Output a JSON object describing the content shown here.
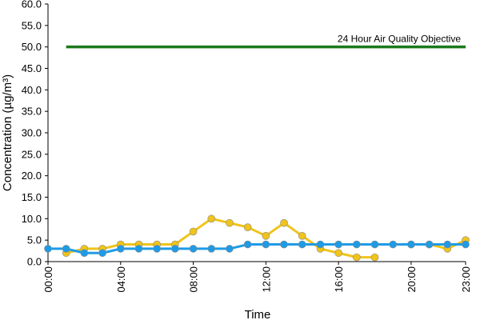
{
  "chart_data": {
    "type": "line",
    "title": "",
    "xlabel": "Time",
    "ylabel": "Concentration (µg/m³)",
    "ylim": [
      0,
      60
    ],
    "yticks": [
      "0.0",
      "5.0",
      "10.0",
      "15.0",
      "20.0",
      "25.0",
      "30.0",
      "35.0",
      "40.0",
      "45.0",
      "50.0",
      "55.0",
      "60.0"
    ],
    "x": [
      0,
      1,
      2,
      3,
      4,
      5,
      6,
      7,
      8,
      9,
      10,
      11,
      12,
      13,
      14,
      15,
      16,
      17,
      18,
      19,
      20,
      21,
      22,
      23
    ],
    "xticks": [
      {
        "x": 0,
        "label": "00:00"
      },
      {
        "x": 4,
        "label": "04:00"
      },
      {
        "x": 8,
        "label": "08:00"
      },
      {
        "x": 12,
        "label": "12:00"
      },
      {
        "x": 16,
        "label": "16:00"
      },
      {
        "x": 20,
        "label": "20:00"
      },
      {
        "x": 23,
        "label": "23:00"
      }
    ],
    "grid": false,
    "series": [
      {
        "color": "#f0c419",
        "values": [
          null,
          2,
          3,
          3,
          4,
          4,
          4,
          4,
          7,
          10,
          9,
          8,
          6,
          9,
          6,
          3,
          2,
          1,
          1,
          null,
          4,
          4,
          3,
          5
        ]
      },
      {
        "color": "#1e9be6",
        "values": [
          3,
          3,
          2,
          2,
          3,
          3,
          3,
          3,
          3,
          3,
          3,
          4,
          4,
          4,
          4,
          4,
          4,
          4,
          4,
          4,
          4,
          4,
          4,
          4
        ]
      }
    ],
    "reference_lines": [
      {
        "label": "24 Hour Air Quality Objective",
        "value": 50,
        "x_start": 1,
        "x_end": 23,
        "color": "#1a7a1a"
      }
    ]
  }
}
